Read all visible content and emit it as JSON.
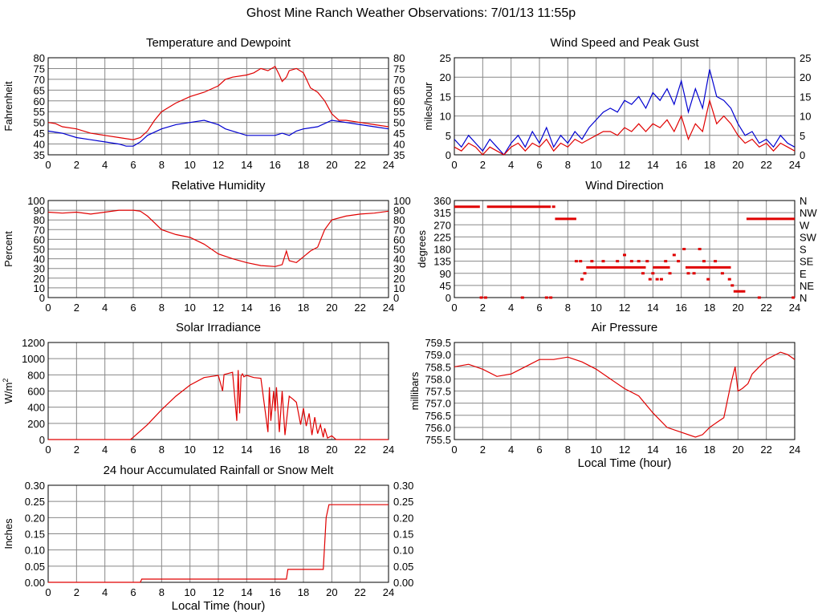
{
  "page_title": "Ghost Mine Ranch Weather Observations: 7/01/13 11:55p",
  "x_axis_label": "Local Time (hour)",
  "colors": {
    "red": "#e00000",
    "blue": "#0000d0",
    "grid": "#888888",
    "frame": "#000000"
  },
  "chart_data": [
    {
      "id": "temp",
      "type": "line",
      "title": "Temperature and Dewpoint",
      "ylabel": "Fahrenheit",
      "xlim": [
        0,
        24
      ],
      "ylim": [
        35,
        80
      ],
      "yticks": [
        "35",
        "40",
        "45",
        "50",
        "55",
        "60",
        "65",
        "70",
        "75",
        "80"
      ],
      "xticks": [
        "0",
        "2",
        "4",
        "6",
        "8",
        "10",
        "12",
        "14",
        "16",
        "18",
        "20",
        "22",
        "24"
      ],
      "right_axis": true,
      "grid": true,
      "series": [
        {
          "color": "red",
          "x": [
            0,
            0.5,
            1,
            2,
            3,
            4,
            5,
            6,
            6.5,
            7,
            7.5,
            8,
            9,
            10,
            11,
            12,
            12.5,
            13,
            14,
            14.5,
            15,
            15.5,
            16,
            16.3,
            16.5,
            16.8,
            17,
            17.5,
            18,
            18.5,
            19,
            19.5,
            20,
            20.5,
            21,
            22,
            23,
            24
          ],
          "y": [
            50,
            49.5,
            48,
            47,
            45,
            44,
            43,
            42,
            43,
            46,
            51,
            55,
            59,
            62,
            64,
            67,
            70,
            71,
            72,
            73,
            75,
            74,
            76,
            72,
            69,
            71,
            74,
            75,
            73,
            66,
            64,
            60,
            54,
            51,
            51,
            50,
            49,
            48
          ]
        },
        {
          "color": "blue",
          "x": [
            0,
            1,
            2,
            3,
            4,
            5,
            5.5,
            6,
            6.5,
            7,
            8,
            9,
            10,
            11,
            12,
            12.5,
            13,
            14,
            15,
            16,
            16.5,
            17,
            17.5,
            18,
            19,
            20,
            21,
            22,
            23,
            24
          ],
          "y": [
            46,
            45,
            43,
            42,
            41,
            40,
            39,
            39,
            41,
            44,
            47,
            49,
            50,
            51,
            49,
            47,
            46,
            44,
            44,
            44,
            45,
            44,
            46,
            47,
            48,
            51,
            50,
            49,
            48,
            47
          ]
        }
      ]
    },
    {
      "id": "wind",
      "type": "line",
      "title": "Wind Speed and Peak Gust",
      "ylabel": "miles/hour",
      "xlim": [
        0,
        24
      ],
      "ylim": [
        0,
        25
      ],
      "yticks": [
        "0",
        "5",
        "10",
        "15",
        "20",
        "25"
      ],
      "xticks": [
        "0",
        "2",
        "4",
        "6",
        "8",
        "10",
        "12",
        "14",
        "16",
        "18",
        "20",
        "22",
        "24"
      ],
      "right_axis": true,
      "grid": true,
      "series": [
        {
          "color": "blue",
          "x": [
            0,
            0.5,
            1,
            1.5,
            2,
            2.5,
            3,
            3.5,
            4,
            4.5,
            5,
            5.5,
            6,
            6.5,
            7,
            7.5,
            8,
            8.5,
            9,
            9.5,
            10,
            10.5,
            11,
            11.5,
            12,
            12.5,
            13,
            13.5,
            14,
            14.5,
            15,
            15.5,
            16,
            16.5,
            17,
            17.5,
            18,
            18.5,
            19,
            19.5,
            20,
            20.5,
            21,
            21.5,
            22,
            22.5,
            23,
            23.5,
            24
          ],
          "y": [
            4,
            2,
            5,
            3,
            1,
            4,
            2,
            0,
            3,
            5,
            2,
            6,
            3,
            7,
            2,
            5,
            3,
            6,
            4,
            7,
            9,
            11,
            12,
            11,
            14,
            13,
            15,
            12,
            16,
            14,
            17,
            13,
            19,
            11,
            17,
            12,
            22,
            15,
            14,
            12,
            8,
            5,
            6,
            3,
            4,
            2,
            5,
            3,
            2
          ]
        },
        {
          "color": "red",
          "x": [
            0,
            0.5,
            1,
            1.5,
            2,
            2.5,
            3,
            3.5,
            4,
            4.5,
            5,
            5.5,
            6,
            6.5,
            7,
            7.5,
            8,
            8.5,
            9,
            9.5,
            10,
            10.5,
            11,
            11.5,
            12,
            12.5,
            13,
            13.5,
            14,
            14.5,
            15,
            15.5,
            16,
            16.5,
            17,
            17.5,
            18,
            18.5,
            19,
            19.5,
            20,
            20.5,
            21,
            21.5,
            22,
            22.5,
            23,
            23.5,
            24
          ],
          "y": [
            2,
            1,
            3,
            2,
            0,
            2,
            1,
            0,
            2,
            3,
            1,
            3,
            2,
            4,
            1,
            3,
            2,
            4,
            3,
            4,
            5,
            6,
            6,
            5,
            7,
            6,
            8,
            6,
            8,
            7,
            9,
            6,
            10,
            4,
            8,
            6,
            14,
            8,
            10,
            8,
            5,
            3,
            4,
            2,
            3,
            1,
            3,
            2,
            1
          ]
        }
      ]
    },
    {
      "id": "rh",
      "type": "line",
      "title": "Relative Humidity",
      "ylabel": "Percent",
      "xlim": [
        0,
        24
      ],
      "ylim": [
        0,
        100
      ],
      "yticks": [
        "0",
        "10",
        "20",
        "30",
        "40",
        "50",
        "60",
        "70",
        "80",
        "90",
        "100"
      ],
      "xticks": [
        "0",
        "2",
        "4",
        "6",
        "8",
        "10",
        "12",
        "14",
        "16",
        "18",
        "20",
        "22",
        "24"
      ],
      "right_axis": true,
      "grid": true,
      "series": [
        {
          "color": "red",
          "x": [
            0,
            1,
            2,
            3,
            4,
            5,
            6,
            6.5,
            7,
            7.5,
            8,
            9,
            10,
            11,
            12,
            13,
            14,
            15,
            16,
            16.5,
            16.8,
            17,
            17.5,
            18,
            18.5,
            19,
            19.5,
            20,
            21,
            22,
            23,
            24
          ],
          "y": [
            88,
            87,
            88,
            86,
            88,
            90,
            90,
            89,
            84,
            77,
            70,
            65,
            62,
            55,
            45,
            40,
            36,
            33,
            32,
            34,
            48,
            38,
            36,
            42,
            48,
            52,
            70,
            80,
            84,
            86,
            87,
            89
          ]
        }
      ]
    },
    {
      "id": "dir",
      "type": "scatter",
      "title": "Wind Direction",
      "ylabel": "degrees",
      "xlim": [
        0,
        24
      ],
      "ylim": [
        0,
        360
      ],
      "yticks": [
        "0",
        "45",
        "90",
        "135",
        "180",
        "225",
        "270",
        "315",
        "360"
      ],
      "right_ticks": [
        "N",
        "NE",
        "E",
        "SE",
        "S",
        "SW",
        "W",
        "NW",
        "N"
      ],
      "xticks": [
        "0",
        "2",
        "4",
        "6",
        "8",
        "10",
        "12",
        "14",
        "16",
        "18",
        "20",
        "22",
        "24"
      ],
      "grid": true,
      "series": [
        {
          "color": "red",
          "segments": [
            [
              0,
              1.8,
              337
            ],
            [
              2.3,
              6.8,
              337
            ],
            [
              7.1,
              8.6,
              292
            ],
            [
              20.6,
              24,
              292
            ],
            [
              9.3,
              13.5,
              112
            ],
            [
              14,
              15.2,
              112
            ],
            [
              16.3,
              19.5,
              112
            ]
          ],
          "points": [
            [
              1.9,
              0
            ],
            [
              2.2,
              0
            ],
            [
              4.8,
              0
            ],
            [
              6.5,
              0
            ],
            [
              6.8,
              0
            ],
            [
              7,
              337
            ],
            [
              8.6,
              135
            ],
            [
              8.9,
              135
            ],
            [
              9,
              68
            ],
            [
              9.2,
              90
            ],
            [
              9.7,
              135
            ],
            [
              10.5,
              135
            ],
            [
              11.5,
              135
            ],
            [
              12,
              158
            ],
            [
              12.5,
              135
            ],
            [
              13,
              135
            ],
            [
              13.3,
              90
            ],
            [
              13.6,
              135
            ],
            [
              13.8,
              68
            ],
            [
              14,
              90
            ],
            [
              14.3,
              68
            ],
            [
              14.6,
              68
            ],
            [
              14.9,
              135
            ],
            [
              15.2,
              90
            ],
            [
              15.5,
              158
            ],
            [
              15.8,
              135
            ],
            [
              16.2,
              180
            ],
            [
              16.5,
              90
            ],
            [
              16.9,
              90
            ],
            [
              17.3,
              180
            ],
            [
              17.6,
              135
            ],
            [
              17.9,
              68
            ],
            [
              18.4,
              135
            ],
            [
              18.9,
              90
            ],
            [
              19.4,
              68
            ],
            [
              19.6,
              45
            ],
            [
              19.8,
              23
            ],
            [
              20,
              23
            ],
            [
              20.2,
              23
            ],
            [
              20.4,
              23
            ],
            [
              21.5,
              0
            ],
            [
              23.9,
              0
            ]
          ]
        }
      ]
    },
    {
      "id": "solar",
      "type": "line",
      "title": "Solar Irradiance",
      "ylabel": "W/m",
      "ylabel_superscript": "2",
      "xlim": [
        0,
        24
      ],
      "ylim": [
        0,
        1300
      ],
      "yticks": [
        "0",
        "200",
        "400",
        "600",
        "800",
        "1000",
        "1200"
      ],
      "xticks": [
        "0",
        "2",
        "4",
        "6",
        "8",
        "10",
        "12",
        "14",
        "16",
        "18",
        "20",
        "22",
        "24"
      ],
      "right_axis": false,
      "grid": true,
      "series": [
        {
          "color": "red",
          "x": [
            0,
            5.8,
            6,
            7,
            8,
            9,
            10,
            11,
            12,
            12.3,
            12.4,
            12.6,
            13,
            13.3,
            13.4,
            13.5,
            13.6,
            13.7,
            13.8,
            14,
            14.5,
            15,
            15.5,
            15.6,
            15.7,
            15.9,
            16,
            16.1,
            16.3,
            16.5,
            16.7,
            17,
            17.2,
            17.5,
            17.8,
            18,
            18.2,
            18.4,
            18.6,
            18.8,
            19,
            19.2,
            19.4,
            19.5,
            19.7,
            20,
            20.3,
            24
          ],
          "y": [
            0,
            0,
            30,
            200,
            400,
            580,
            730,
            830,
            860,
            650,
            870,
            880,
            900,
            250,
            930,
            350,
            850,
            880,
            840,
            860,
            830,
            820,
            100,
            700,
            250,
            650,
            380,
            700,
            100,
            650,
            60,
            580,
            550,
            500,
            200,
            420,
            180,
            350,
            60,
            300,
            80,
            200,
            30,
            150,
            20,
            50,
            0,
            0
          ]
        }
      ]
    },
    {
      "id": "pressure",
      "type": "line",
      "title": "Air Pressure",
      "ylabel": "millibars",
      "xlim": [
        0,
        24
      ],
      "ylim": [
        755.5,
        759.5
      ],
      "yticks": [
        "755.5",
        "756.0",
        "756.5",
        "757.0",
        "757.5",
        "758.0",
        "758.5",
        "759.0",
        "759.5"
      ],
      "xticks": [
        "0",
        "2",
        "4",
        "6",
        "8",
        "10",
        "12",
        "14",
        "16",
        "18",
        "20",
        "22",
        "24"
      ],
      "right_axis": false,
      "grid": true,
      "series": [
        {
          "color": "red",
          "x": [
            0,
            1,
            2,
            3,
            4,
            5,
            6,
            7,
            8,
            9,
            10,
            11,
            12,
            13,
            14,
            15,
            16,
            17,
            17.5,
            18,
            18.5,
            19,
            19.5,
            19.8,
            20,
            20.3,
            20.7,
            21,
            22,
            23,
            23.5,
            24
          ],
          "y": [
            758.5,
            758.6,
            758.4,
            758.1,
            758.2,
            758.5,
            758.8,
            758.8,
            758.9,
            758.7,
            758.4,
            758.0,
            757.6,
            757.3,
            756.6,
            756.0,
            755.8,
            755.6,
            755.7,
            756.0,
            756.2,
            756.4,
            757.8,
            758.5,
            757.5,
            757.6,
            757.8,
            758.2,
            758.8,
            759.1,
            759.0,
            758.8
          ]
        }
      ]
    },
    {
      "id": "rain",
      "type": "line",
      "title": "24 hour Accumulated Rainfall or Snow Melt",
      "ylabel": "Inches",
      "xlim": [
        0,
        24
      ],
      "ylim": [
        0,
        0.3
      ],
      "yticks": [
        "0.00",
        "0.05",
        "0.10",
        "0.15",
        "0.20",
        "0.25",
        "0.30"
      ],
      "xticks": [
        "0",
        "2",
        "4",
        "6",
        "8",
        "10",
        "12",
        "14",
        "16",
        "18",
        "20",
        "22",
        "24"
      ],
      "right_axis": true,
      "grid": true,
      "series": [
        {
          "color": "red",
          "x": [
            0,
            6.5,
            6.6,
            16.8,
            16.9,
            19.4,
            19.6,
            19.8,
            24
          ],
          "y": [
            0,
            0,
            0.01,
            0.01,
            0.04,
            0.04,
            0.2,
            0.24,
            0.24
          ]
        }
      ]
    }
  ]
}
